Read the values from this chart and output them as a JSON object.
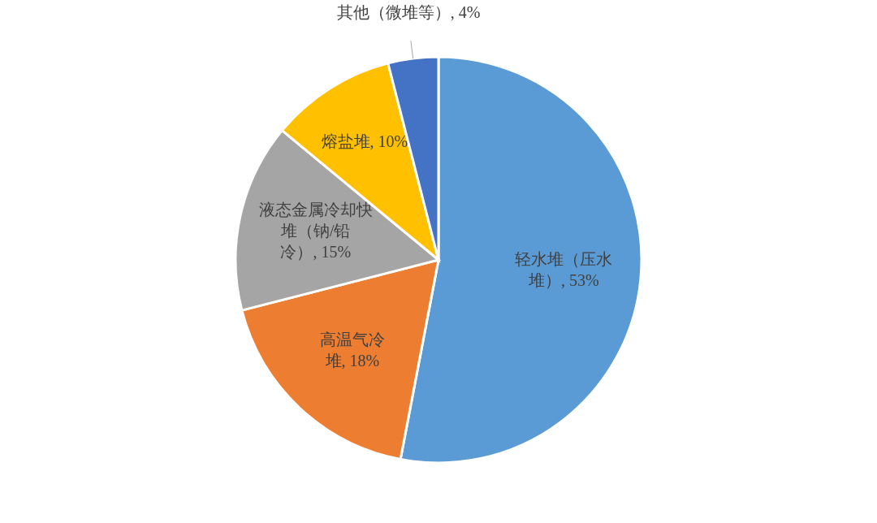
{
  "chart_data": {
    "type": "pie",
    "categories": [
      "轻水堆（压水堆）",
      "高温气冷堆",
      "液态金属冷却快堆（钠/铅冷）",
      "熔盐堆",
      "其他（微堆等）"
    ],
    "values": [
      53,
      18,
      15,
      10,
      4
    ],
    "value_labels": [
      ", 53%",
      ", 18%",
      ", 15%",
      ", 10%",
      ", 4%"
    ],
    "colors": [
      "#5b9bd5",
      "#ed7d31",
      "#a5a5a5",
      "#ffc000",
      "#4472c4"
    ]
  }
}
